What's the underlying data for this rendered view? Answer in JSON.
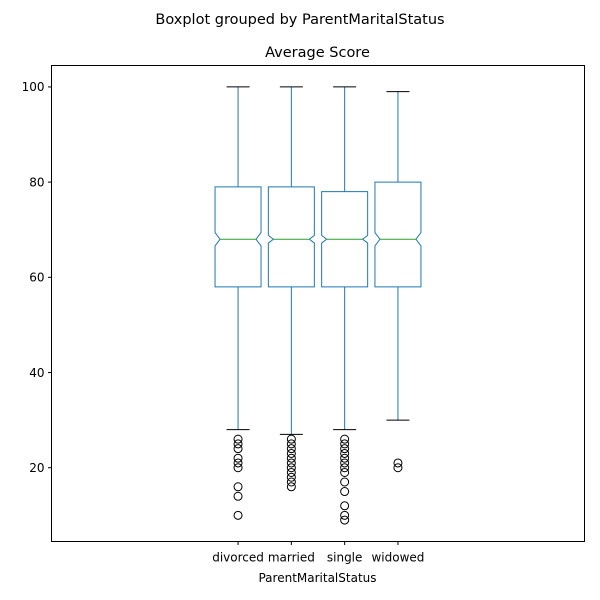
{
  "suptitle": "Boxplot grouped by ParentMaritalStatus",
  "chart_data": {
    "type": "boxplot",
    "title": "Average Score",
    "xlabel": "ParentMaritalStatus",
    "ylabel": "",
    "ylim": [
      4.5,
      104.5
    ],
    "yticks": [
      20,
      40,
      60,
      80,
      100
    ],
    "notched": true,
    "grid": false,
    "colors": {
      "box": "#1f77b4",
      "median": "#2ca02c",
      "cap": "#000000",
      "flier": "#000000"
    },
    "categories": [
      "divorced",
      "married",
      "single",
      "widowed"
    ],
    "boxes": [
      {
        "name": "divorced",
        "whisker_low": 28,
        "q1": 58,
        "median": 68,
        "q3": 79,
        "whisker_high": 100,
        "notch_low": 66.6,
        "notch_high": 69.4,
        "outliers": [
          26,
          25,
          24,
          22,
          21,
          20,
          16,
          14,
          10
        ]
      },
      {
        "name": "married",
        "whisker_low": 27,
        "q1": 58,
        "median": 68,
        "q3": 79,
        "whisker_high": 100,
        "notch_low": 67.2,
        "notch_high": 68.8,
        "outliers": [
          26,
          25,
          24,
          23,
          22,
          21,
          20,
          19,
          18,
          17,
          16
        ]
      },
      {
        "name": "single",
        "whisker_low": 28,
        "q1": 58,
        "median": 68,
        "q3": 78,
        "whisker_high": 100,
        "notch_low": 67.2,
        "notch_high": 68.8,
        "outliers": [
          26,
          25,
          24,
          23,
          22,
          21,
          20,
          19,
          17,
          15,
          12,
          10,
          9
        ]
      },
      {
        "name": "widowed",
        "whisker_low": 30,
        "q1": 58,
        "median": 68,
        "q3": 80,
        "whisker_high": 99,
        "notch_low": 66.6,
        "notch_high": 69.4,
        "outliers": [
          21,
          20
        ]
      }
    ]
  }
}
